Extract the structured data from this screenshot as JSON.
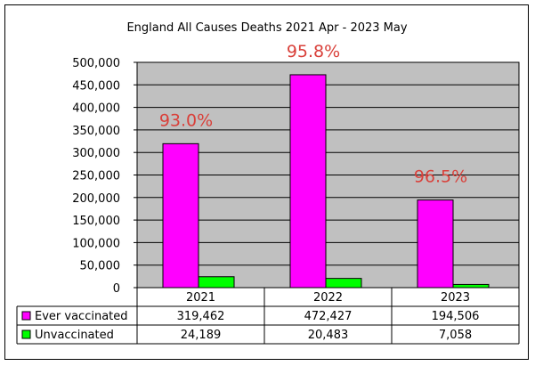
{
  "chart_data": {
    "type": "bar",
    "title": "England All Causes Deaths 2021 Apr - 2023 May",
    "categories": [
      "2021",
      "2022",
      "2023"
    ],
    "series": [
      {
        "name": "Ever vaccinated",
        "values": [
          319462,
          472427,
          194506
        ],
        "labels": [
          "319,462",
          "472,427",
          "194,506"
        ],
        "color": "#ff00ff"
      },
      {
        "name": "Unvaccinated",
        "values": [
          24189,
          20483,
          7058
        ],
        "labels": [
          "24,189",
          "20,483",
          "7,058"
        ],
        "color": "#00ff00"
      }
    ],
    "annotations": [
      "93.0%",
      "95.8%",
      "96.5%"
    ],
    "annotation_color": "#d9403a",
    "ylim": [
      0,
      500000
    ],
    "yticks": [
      0,
      50000,
      100000,
      150000,
      200000,
      250000,
      300000,
      350000,
      400000,
      450000,
      500000
    ],
    "ytick_labels": [
      "0",
      "50,000",
      "100,000",
      "150,000",
      "200,000",
      "250,000",
      "300,000",
      "350,000",
      "400,000",
      "450,000",
      "500,000"
    ],
    "grid": true,
    "legend": "data-table"
  }
}
